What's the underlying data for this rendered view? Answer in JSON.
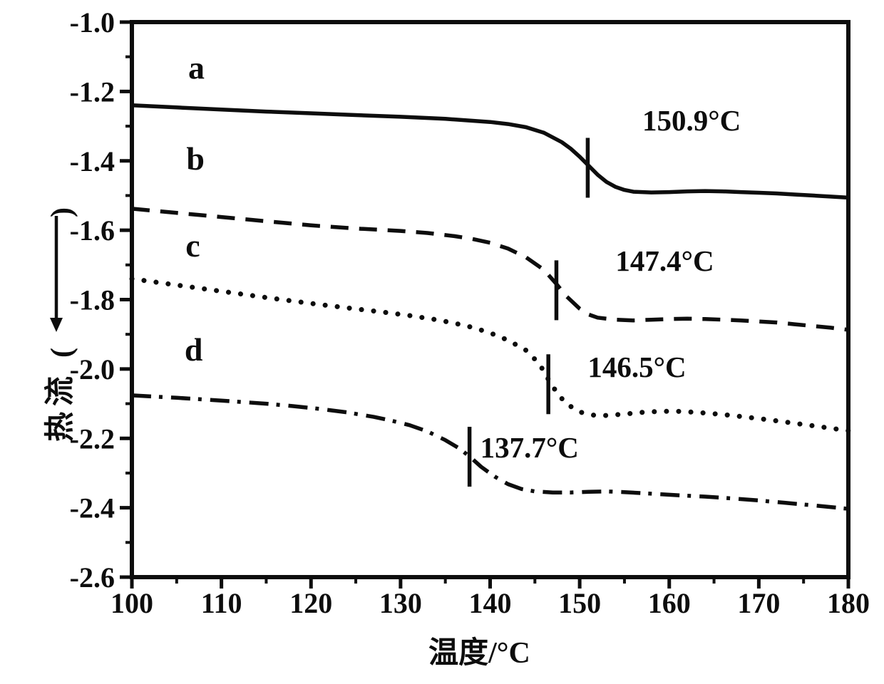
{
  "figure": {
    "background_color": "#ffffff",
    "ink_color": "#0d0d0d"
  },
  "chart_data": {
    "type": "line",
    "title": "",
    "xlabel": "温度/°C",
    "ylabel": "热流 (←)",
    "ylabel_parts": {
      "text": "热流",
      "open_paren": "(",
      "arrow": "←",
      "close_paren": ")"
    },
    "xlim": [
      100,
      180
    ],
    "ylim": [
      -2.6,
      -1.0
    ],
    "grid": false,
    "legend_position": "none",
    "x_axis": {
      "major_ticks": [
        100,
        110,
        120,
        130,
        140,
        150,
        160,
        170,
        180
      ],
      "major_tick_labels": [
        "100",
        "110",
        "120",
        "130",
        "140",
        "150",
        "160",
        "170",
        "180"
      ],
      "minor_ticks": [
        105,
        115,
        125,
        135,
        145,
        155,
        165,
        175
      ]
    },
    "y_axis": {
      "major_ticks": [
        -1.0,
        -1.2,
        -1.4,
        -1.6,
        -1.8,
        -2.0,
        -2.2,
        -2.4,
        -2.6
      ],
      "major_tick_labels": [
        "-1.0",
        "-1.2",
        "-1.4",
        "-1.6",
        "-1.8",
        "-2.0",
        "-2.2",
        "-2.4",
        "-2.6"
      ],
      "minor_ticks": [
        -1.1,
        -1.3,
        -1.5,
        -1.7,
        -1.9,
        -2.1,
        -2.3,
        -2.5
      ]
    },
    "series": [
      {
        "name": "a",
        "line_style": "solid",
        "color": "#0d0d0d",
        "transition_temp_c": 150.9,
        "transition_label": "150.9°C",
        "letter_pos": {
          "t": 107.2,
          "v": -1.13
        },
        "label_pos": {
          "t": 162.5,
          "v": -1.283
        },
        "marker": {
          "t": 150.9,
          "v": -1.42
        },
        "points": [
          [
            100,
            -1.24
          ],
          [
            105,
            -1.246
          ],
          [
            110,
            -1.252
          ],
          [
            115,
            -1.258
          ],
          [
            120,
            -1.263
          ],
          [
            125,
            -1.268
          ],
          [
            130,
            -1.273
          ],
          [
            135,
            -1.279
          ],
          [
            140,
            -1.288
          ],
          [
            142,
            -1.294
          ],
          [
            144,
            -1.303
          ],
          [
            146,
            -1.319
          ],
          [
            148,
            -1.346
          ],
          [
            149,
            -1.365
          ],
          [
            150,
            -1.388
          ],
          [
            151,
            -1.414
          ],
          [
            152,
            -1.44
          ],
          [
            153,
            -1.461
          ],
          [
            154,
            -1.475
          ],
          [
            155,
            -1.484
          ],
          [
            156,
            -1.489
          ],
          [
            158,
            -1.491
          ],
          [
            160,
            -1.49
          ],
          [
            162,
            -1.488
          ],
          [
            164,
            -1.487
          ],
          [
            166,
            -1.488
          ],
          [
            168,
            -1.49
          ],
          [
            170,
            -1.492
          ],
          [
            172,
            -1.494
          ],
          [
            174,
            -1.497
          ],
          [
            176,
            -1.5
          ],
          [
            178,
            -1.503
          ],
          [
            180,
            -1.506
          ]
        ]
      },
      {
        "name": "b",
        "line_style": "dashed",
        "color": "#0d0d0d",
        "transition_temp_c": 147.4,
        "transition_label": "147.4°C",
        "letter_pos": {
          "t": 107.1,
          "v": -1.392
        },
        "label_pos": {
          "t": 159.5,
          "v": -1.688
        },
        "marker": {
          "t": 147.4,
          "v": -1.773
        },
        "points": [
          [
            100,
            -1.538
          ],
          [
            105,
            -1.55
          ],
          [
            110,
            -1.562
          ],
          [
            115,
            -1.574
          ],
          [
            120,
            -1.586
          ],
          [
            125,
            -1.595
          ],
          [
            130,
            -1.602
          ],
          [
            133,
            -1.608
          ],
          [
            136,
            -1.617
          ],
          [
            138,
            -1.625
          ],
          [
            140,
            -1.636
          ],
          [
            142,
            -1.653
          ],
          [
            144,
            -1.678
          ],
          [
            146,
            -1.714
          ],
          [
            147.4,
            -1.755
          ],
          [
            148.5,
            -1.79
          ],
          [
            150,
            -1.826
          ],
          [
            151,
            -1.843
          ],
          [
            152,
            -1.852
          ],
          [
            154,
            -1.858
          ],
          [
            156,
            -1.86
          ],
          [
            158,
            -1.858
          ],
          [
            160,
            -1.856
          ],
          [
            162,
            -1.855
          ],
          [
            164,
            -1.856
          ],
          [
            166,
            -1.858
          ],
          [
            168,
            -1.86
          ],
          [
            170,
            -1.863
          ],
          [
            172,
            -1.866
          ],
          [
            174,
            -1.871
          ],
          [
            176,
            -1.876
          ],
          [
            178,
            -1.881
          ],
          [
            180,
            -1.887
          ]
        ]
      },
      {
        "name": "c",
        "line_style": "dotted",
        "color": "#0d0d0d",
        "transition_temp_c": 146.5,
        "transition_label": "146.5°C",
        "letter_pos": {
          "t": 106.8,
          "v": -1.643
        },
        "label_pos": {
          "t": 156.4,
          "v": -1.994
        },
        "marker": {
          "t": 146.5,
          "v": -2.044
        },
        "points": [
          [
            100,
            -1.74
          ],
          [
            105,
            -1.758
          ],
          [
            110,
            -1.776
          ],
          [
            115,
            -1.794
          ],
          [
            120,
            -1.811
          ],
          [
            125,
            -1.827
          ],
          [
            128,
            -1.836
          ],
          [
            131,
            -1.846
          ],
          [
            134,
            -1.858
          ],
          [
            136,
            -1.868
          ],
          [
            138,
            -1.88
          ],
          [
            140,
            -1.896
          ],
          [
            142,
            -1.917
          ],
          [
            144,
            -1.946
          ],
          [
            145.5,
            -1.985
          ],
          [
            146.5,
            -2.03
          ],
          [
            147.5,
            -2.07
          ],
          [
            148.5,
            -2.1
          ],
          [
            150,
            -2.124
          ],
          [
            151.5,
            -2.133
          ],
          [
            153,
            -2.134
          ],
          [
            155,
            -2.13
          ],
          [
            157,
            -2.125
          ],
          [
            159,
            -2.122
          ],
          [
            161,
            -2.122
          ],
          [
            163,
            -2.125
          ],
          [
            165,
            -2.129
          ],
          [
            167,
            -2.134
          ],
          [
            169,
            -2.14
          ],
          [
            171,
            -2.146
          ],
          [
            173,
            -2.153
          ],
          [
            175,
            -2.16
          ],
          [
            177,
            -2.167
          ],
          [
            180,
            -2.178
          ]
        ]
      },
      {
        "name": "d",
        "line_style": "dashdot",
        "color": "#0d0d0d",
        "transition_temp_c": 137.7,
        "transition_label": "137.7°C",
        "letter_pos": {
          "t": 106.9,
          "v": -1.943
        },
        "label_pos": {
          "t": 144.4,
          "v": -2.226
        },
        "marker": {
          "t": 137.7,
          "v": -2.253
        },
        "points": [
          [
            100,
            -2.076
          ],
          [
            105,
            -2.083
          ],
          [
            110,
            -2.091
          ],
          [
            115,
            -2.1
          ],
          [
            118,
            -2.107
          ],
          [
            121,
            -2.115
          ],
          [
            124,
            -2.125
          ],
          [
            127,
            -2.138
          ],
          [
            129,
            -2.149
          ],
          [
            131,
            -2.162
          ],
          [
            133,
            -2.18
          ],
          [
            135,
            -2.205
          ],
          [
            136.5,
            -2.228
          ],
          [
            137.7,
            -2.252
          ],
          [
            139,
            -2.282
          ],
          [
            140.5,
            -2.31
          ],
          [
            142,
            -2.332
          ],
          [
            143.5,
            -2.346
          ],
          [
            145,
            -2.353
          ],
          [
            147,
            -2.356
          ],
          [
            149,
            -2.356
          ],
          [
            151,
            -2.354
          ],
          [
            153,
            -2.353
          ],
          [
            155,
            -2.355
          ],
          [
            157,
            -2.358
          ],
          [
            159,
            -2.361
          ],
          [
            161,
            -2.364
          ],
          [
            164,
            -2.368
          ],
          [
            167,
            -2.373
          ],
          [
            170,
            -2.379
          ],
          [
            173,
            -2.386
          ],
          [
            176,
            -2.393
          ],
          [
            180,
            -2.403
          ]
        ]
      }
    ]
  }
}
